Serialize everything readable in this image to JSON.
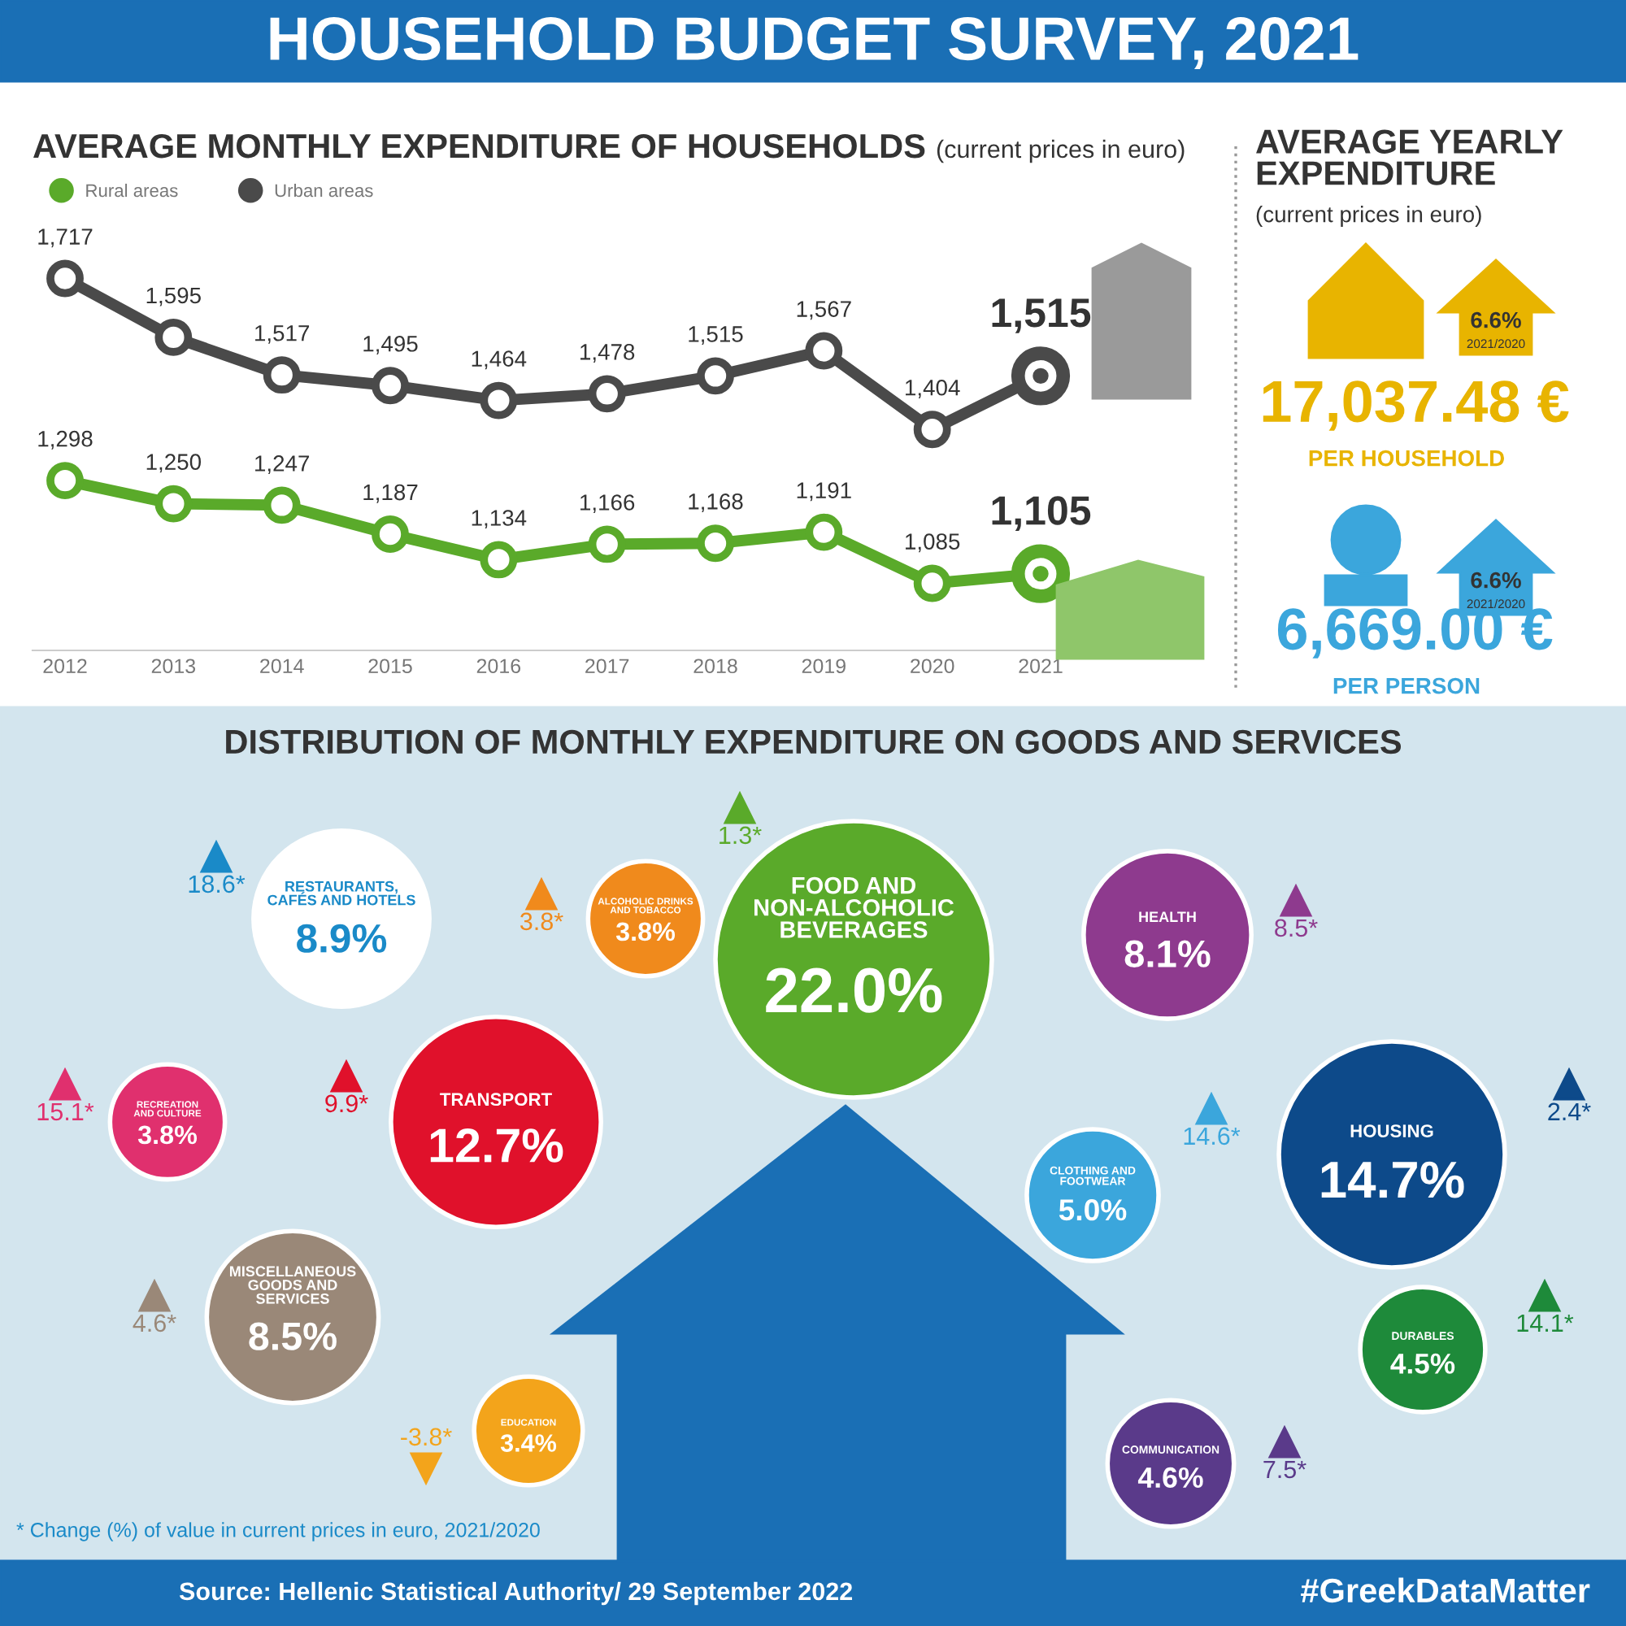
{
  "chart_data": [
    {
      "type": "line",
      "title": "AVERAGE MONTHLY EXPENDITURE OF HOUSEHOLDS",
      "subtitle": "(current prices in euro)",
      "annotations": [
        "HOUSEHOLD BUDGET SURVEY, 2021"
      ],
      "categories": [
        "2012",
        "2013",
        "2014",
        "2015",
        "2016",
        "2017",
        "2018",
        "2019",
        "2020",
        "2021"
      ],
      "series": [
        {
          "name": "Rural areas",
          "color": "#5aaa2a",
          "values": [
            1298,
            1250,
            1247,
            1187,
            1134,
            1166,
            1168,
            1191,
            1085,
            1105
          ],
          "value_labels": [
            "1,298",
            "1,250",
            "1,247",
            "1,187",
            "1,134",
            "1,166",
            "1,168",
            "1,191",
            "1,085",
            "1,105"
          ]
        },
        {
          "name": "Urban areas",
          "color": "#4a4a4a",
          "values": [
            1717,
            1595,
            1517,
            1495,
            1464,
            1478,
            1515,
            1567,
            1404,
            1515
          ],
          "value_labels": [
            "1,717",
            "1,595",
            "1,517",
            "1,495",
            "1,464",
            "1,478",
            "1,515",
            "1,567",
            "1,404",
            "1,515"
          ]
        }
      ],
      "data_labels": true,
      "marker": "circle",
      "legend": "top left",
      "tick_labels": "x"
    },
    {
      "type": "other",
      "title": "AVERAGE YEARLY EXPENDITURE",
      "subtitle": "(current prices in euro)",
      "categories": [
        "PER HOUSEHOLD",
        "PER PERSON"
      ],
      "value_labels": [
        "17,037.48 €",
        "6,669.00 €"
      ],
      "colors": [
        "#e8b400",
        "#3ba6dc"
      ],
      "annotations": [
        "6.6%",
        "2021/2020",
        "6.6%",
        "2021/2020"
      ]
    },
    {
      "type": "other",
      "title": "DISTRIBUTION OF MONTHLY EXPENDITURE ON GOODS AND SERVICES",
      "categories": [
        "RESTAURANTS,\nCAFÉS AND HOTELS",
        "ALCOHOLIC DRINKS\nAND TOBACCO",
        "FOOD AND\nNON-ALCOHOLIC\nBEVERAGES",
        "HEALTH",
        "TRANSPORT",
        "RECREATION\nAND CULTURE",
        "CLOTHING AND\nFOOTWEAR",
        "HOUSING",
        "MISCELLANEOUS\nGOODS AND\nSERVICES",
        "DURABLES",
        "EDUCATION",
        "COMMUNICATION"
      ],
      "values": [
        8.9,
        3.8,
        22.0,
        8.1,
        12.7,
        3.8,
        5.0,
        14.7,
        8.5,
        4.5,
        3.4,
        4.6
      ],
      "value_labels": [
        "8.9%",
        "3.8%",
        "22.0%",
        "8.1%",
        "12.7%",
        "3.8%",
        "5.0%",
        "14.7%",
        "8.5%",
        "4.5%",
        "3.4%",
        "4.6%"
      ],
      "colors": [
        "#ffffff",
        "#f08a1c",
        "#5aaa2a",
        "#8e3a8e",
        "#e0112b",
        "#e0306e",
        "#3ba6dc",
        "#0d4a8a",
        "#9a8878",
        "#1e8a3a",
        "#f3a41b",
        "#5a3a8a"
      ],
      "annotations": [
        "18.6*",
        "3.8*",
        "1.3*",
        "8.5*",
        "9.9*",
        "15.1*",
        "14.6*",
        "2.4*",
        "4.6*",
        "14.1*",
        "-3.8*",
        "7.5*",
        "* Change (%) of value in current prices in euro, 2021/2020",
        "Source: Hellenic Statistical Authority/ 29 September 2022",
        "#GreekDataMatter"
      ]
    }
  ]
}
